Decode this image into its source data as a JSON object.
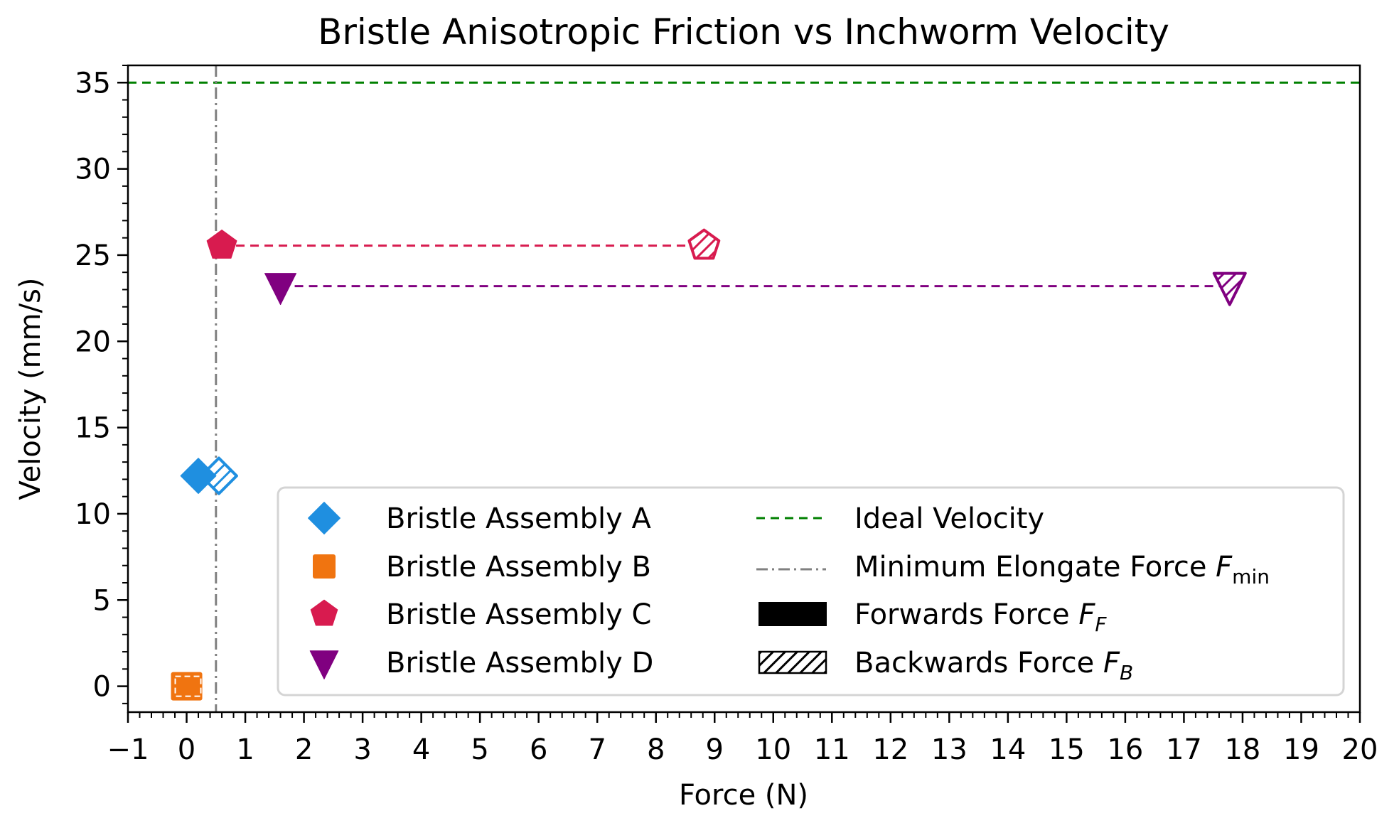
{
  "chart_data": {
    "type": "scatter",
    "title": "Bristle Anisotropic Friction vs Inchworm Velocity",
    "xlabel": "Force (N)",
    "ylabel": "Velocity (mm/s)",
    "xlim": [
      -1,
      20
    ],
    "ylim": [
      -1.5,
      36
    ],
    "x_ticks": [
      -1,
      0,
      1,
      2,
      3,
      4,
      5,
      6,
      7,
      8,
      9,
      10,
      11,
      12,
      13,
      14,
      15,
      16,
      17,
      18,
      19,
      20
    ],
    "x_tick_labels": [
      "−1",
      "0",
      "1",
      "2",
      "3",
      "4",
      "5",
      "6",
      "7",
      "8",
      "9",
      "10",
      "11",
      "12",
      "13",
      "14",
      "15",
      "16",
      "17",
      "18",
      "19",
      "20"
    ],
    "x_minor_step": 0.2,
    "y_ticks": [
      0,
      5,
      10,
      15,
      20,
      25,
      30,
      35
    ],
    "y_tick_labels": [
      "0",
      "5",
      "10",
      "15",
      "20",
      "25",
      "30",
      "35"
    ],
    "y_minor_step": 1,
    "grid": false,
    "legend_position": "lower right (inside axes)",
    "series": [
      {
        "name": "Bristle Assembly A",
        "marker": "diamond",
        "color": "#1f8fe0",
        "forward_force": 0.2,
        "backward_force": 0.55,
        "velocity": 12.2
      },
      {
        "name": "Bristle Assembly B",
        "marker": "square",
        "color": "#f07410",
        "forward_force": 0.0,
        "backward_force": 0.02,
        "velocity": 0.0
      },
      {
        "name": "Bristle Assembly C",
        "marker": "pentagon",
        "color": "#d81b4f",
        "forward_force": 0.6,
        "backward_force": 8.82,
        "velocity": 25.55
      },
      {
        "name": "Bristle Assembly D",
        "marker": "triangle-down",
        "color": "#800080",
        "forward_force": 1.6,
        "backward_force": 17.78,
        "velocity": 23.2
      }
    ],
    "reference_lines": [
      {
        "name": "Ideal Velocity",
        "orientation": "horizontal",
        "value": 35,
        "style": "dashed",
        "color": "#008000"
      },
      {
        "name": "Minimum Elongate Force F_min",
        "orientation": "vertical",
        "value": 0.5,
        "style": "dashdot",
        "color": "#808080"
      }
    ],
    "legend": {
      "left_column": [
        {
          "label": "Bristle Assembly A",
          "marker": "diamond",
          "color": "#1f8fe0"
        },
        {
          "label": "Bristle Assembly B",
          "marker": "square",
          "color": "#f07410"
        },
        {
          "label": "Bristle Assembly C",
          "marker": "pentagon",
          "color": "#d81b4f"
        },
        {
          "label": "Bristle Assembly D",
          "marker": "triangle-down",
          "color": "#800080"
        }
      ],
      "right_column": [
        {
          "label": "Ideal Velocity",
          "symbol": "dashed-line",
          "color": "#008000"
        },
        {
          "label": "Minimum Elongate Force ",
          "math": "F",
          "sub": "min",
          "symbol": "dashdot-line",
          "color": "#808080"
        },
        {
          "label": "Forwards Force ",
          "math": "F",
          "sub": "F",
          "symbol": "solid-patch",
          "color": "#000000"
        },
        {
          "label": "Backwards Force ",
          "math": "F",
          "sub": "B",
          "symbol": "hatched-patch",
          "color": "#000000"
        }
      ]
    }
  }
}
